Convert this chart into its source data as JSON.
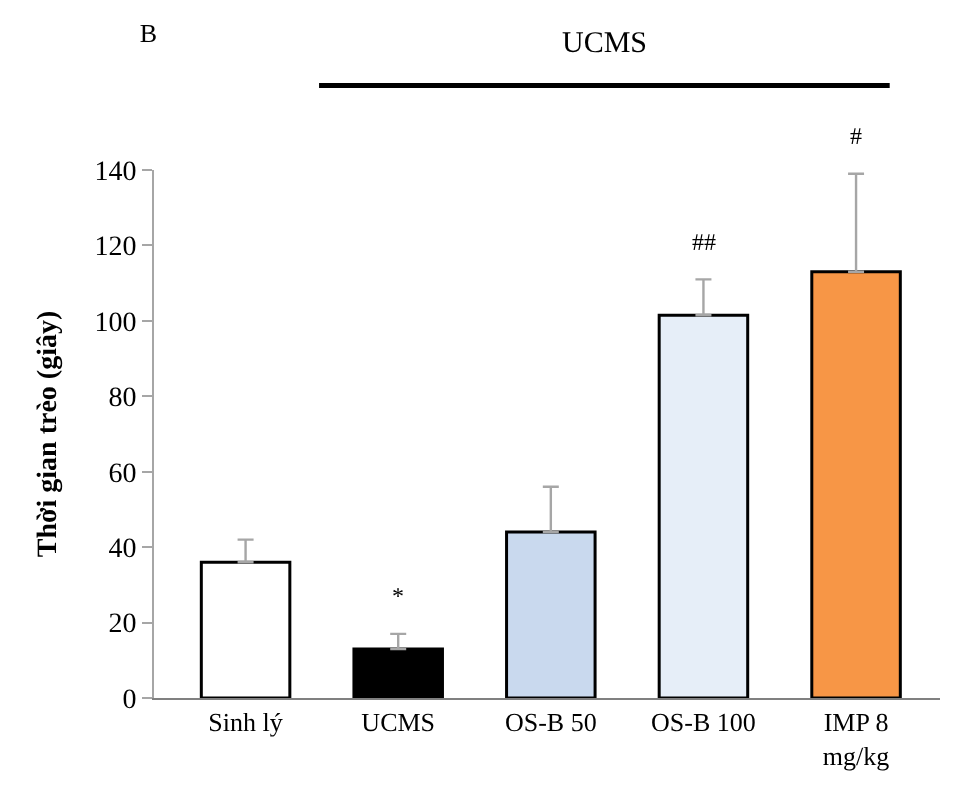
{
  "chart_data": {
    "type": "bar",
    "title": "B",
    "ylabel": "Thời gian trèo (giây)",
    "categories": [
      "Sinh lý",
      "UCMS",
      "OS-B 50",
      "OS-B 100",
      "IMP 8\nmg/kg"
    ],
    "values": [
      36,
      13,
      44,
      101.5,
      113
    ],
    "colors": [
      "#ffffff",
      "#000000",
      "#c9d9ee",
      "#e6eef8",
      "#f79646"
    ],
    "errors": [
      [
        36,
        42
      ],
      [
        13,
        17
      ],
      [
        44,
        56
      ],
      [
        101.5,
        111
      ],
      [
        113,
        139
      ]
    ],
    "ylim": [
      0,
      140
    ],
    "yticks": [
      0,
      20,
      40,
      60,
      80,
      100,
      120,
      140
    ],
    "legend": false,
    "annotations": [
      "UCMS",
      "*",
      "##",
      "#"
    ]
  }
}
